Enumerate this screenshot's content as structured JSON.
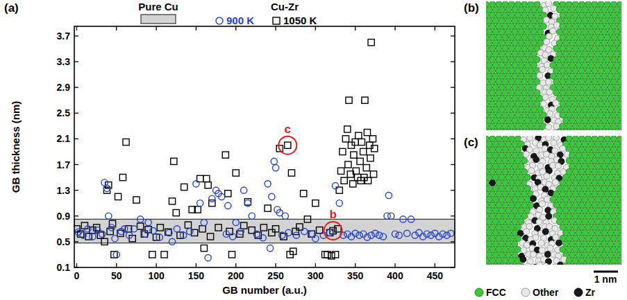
{
  "chart_data": {
    "type": "scatter",
    "panel_label": "(a)",
    "x_label": "GB number (a.u.)",
    "y_label": "GB thickness (nm)",
    "legend_title": "Cu-Zr",
    "legend": "top",
    "xlim": [
      -3,
      475
    ],
    "ylim": [
      0.1,
      3.85
    ],
    "xticks": [
      0,
      50,
      100,
      150,
      200,
      250,
      300,
      350,
      400,
      450
    ],
    "yticks": [
      0.1,
      0.5,
      0.9,
      1.3,
      1.7,
      2.1,
      2.5,
      2.9,
      3.3,
      3.7
    ],
    "reference_band": {
      "name": "Pure Cu",
      "range": [
        0.48,
        0.85
      ],
      "color": "#d3d3d3"
    },
    "annotations": [
      {
        "text": "b",
        "x": 322,
        "y": 0.67,
        "color": "#e0201b"
      },
      {
        "text": "c",
        "x": 265,
        "y": 2.0,
        "color": "#e0201b"
      }
    ],
    "series": [
      {
        "name": "900 K",
        "color": "#1f3fd6",
        "marker": "circle",
        "x": [
          2,
          8,
          14,
          20,
          26,
          32,
          44,
          48,
          56,
          66,
          72,
          86,
          96,
          104,
          116,
          126,
          134,
          142,
          188,
          196,
          206,
          226,
          234,
          266,
          276,
          286,
          296,
          310,
          318,
          335,
          340,
          345,
          350,
          355,
          360,
          365,
          370,
          375,
          380,
          385,
          400,
          405,
          415,
          425,
          430,
          435,
          440,
          445,
          450,
          455,
          460,
          465,
          470,
          35,
          38,
          40,
          50,
          60,
          80,
          90,
          120,
          150,
          155,
          160,
          165,
          170,
          175,
          178,
          182,
          190,
          200,
          210,
          215,
          220,
          240,
          243,
          245,
          248,
          250,
          252,
          255,
          258,
          262,
          300,
          325,
          330,
          390,
          392,
          395,
          410,
          420
        ],
        "values": [
          0.65,
          0.6,
          0.7,
          0.58,
          0.68,
          0.62,
          0.72,
          0.55,
          0.66,
          0.6,
          0.7,
          0.62,
          0.67,
          0.57,
          0.64,
          0.7,
          0.6,
          0.66,
          0.62,
          0.58,
          0.66,
          0.62,
          0.56,
          0.64,
          0.6,
          0.66,
          0.62,
          0.6,
          0.64,
          0.6,
          0.62,
          0.58,
          0.63,
          0.6,
          0.62,
          0.57,
          0.6,
          0.63,
          0.6,
          0.58,
          0.62,
          0.6,
          0.63,
          0.6,
          0.64,
          0.58,
          0.62,
          0.6,
          0.63,
          0.58,
          0.62,
          0.6,
          0.63,
          1.42,
          1.33,
          0.9,
          0.3,
          0.7,
          0.85,
          0.8,
          0.5,
          1.4,
          1.1,
          0.8,
          0.25,
          1.17,
          1.3,
          1.25,
          1.2,
          1.06,
          0.8,
          1.3,
          1.1,
          0.9,
          1.4,
          0.4,
          1.2,
          1.75,
          1.65,
          1.0,
          0.95,
          0.6,
          0.9,
          0.55,
          1.37,
          1.1,
          0.9,
          1.22,
          0.9,
          0.85,
          0.85
        ]
      },
      {
        "name": "1050 K",
        "color": "#000000",
        "marker": "square",
        "x": [
          0,
          5,
          10,
          15,
          20,
          25,
          30,
          35,
          42,
          45,
          55,
          65,
          70,
          80,
          85,
          90,
          100,
          105,
          115,
          130,
          140,
          148,
          158,
          168,
          178,
          192,
          205,
          210,
          220,
          228,
          235,
          245,
          250,
          260,
          275,
          280,
          295,
          305,
          318,
          328,
          38,
          40,
          47,
          52,
          58,
          62,
          75,
          95,
          110,
          120,
          122,
          125,
          135,
          145,
          152,
          155,
          160,
          163,
          165,
          170,
          187,
          190,
          195,
          200,
          215,
          240,
          255,
          265,
          268,
          270,
          272,
          285,
          290,
          300,
          312,
          315,
          320,
          325,
          330,
          332,
          334,
          336,
          338,
          340,
          341,
          342,
          344,
          345,
          347,
          348,
          350,
          351,
          353,
          354,
          356,
          357,
          358,
          360,
          361,
          362,
          364,
          365,
          366,
          368,
          369,
          370,
          372,
          373,
          374,
          322
        ],
        "values": [
          0.7,
          0.62,
          0.75,
          0.58,
          0.68,
          0.72,
          0.6,
          0.5,
          0.66,
          0.78,
          0.63,
          0.7,
          0.55,
          0.74,
          0.62,
          0.69,
          0.57,
          0.72,
          0.65,
          0.6,
          0.76,
          0.64,
          0.7,
          0.58,
          0.72,
          0.66,
          0.62,
          0.75,
          0.68,
          0.6,
          0.72,
          0.64,
          0.7,
          0.58,
          0.66,
          0.73,
          0.62,
          0.68,
          0.64,
          0.7,
          1.3,
          1.38,
          0.3,
          1.2,
          1.5,
          2.05,
          1.15,
          0.3,
          0.3,
          1.13,
          1.75,
          0.95,
          1.35,
          1.0,
          1.0,
          1.48,
          0.4,
          1.48,
          1.38,
          1.1,
          1.85,
          1.25,
          0.3,
          1.57,
          1.12,
          1.02,
          1.95,
          2.0,
          0.3,
          1.57,
          0.35,
          1.25,
          0.85,
          1.1,
          0.3,
          0.3,
          0.28,
          0.3,
          1.3,
          1.6,
          1.9,
          1.45,
          2.1,
          2.25,
          1.7,
          2.7,
          1.55,
          2.0,
          1.4,
          1.85,
          2.05,
          1.6,
          1.5,
          2.15,
          1.75,
          1.45,
          2.05,
          1.9,
          1.5,
          2.7,
          1.65,
          2.2,
          1.45,
          2.0,
          1.8,
          3.6,
          2.1,
          1.55,
          1.95,
          0.67
        ]
      }
    ]
  },
  "snapshots": [
    {
      "label": "(b)"
    },
    {
      "label": "(c)"
    }
  ],
  "scale_bar": "1 nm",
  "atom_legend": [
    {
      "name": "FCC",
      "color": "#3cc63c"
    },
    {
      "name": "Other",
      "color": "#e8e8e8"
    },
    {
      "name": "Zr",
      "color": "#1a1a1a"
    }
  ]
}
